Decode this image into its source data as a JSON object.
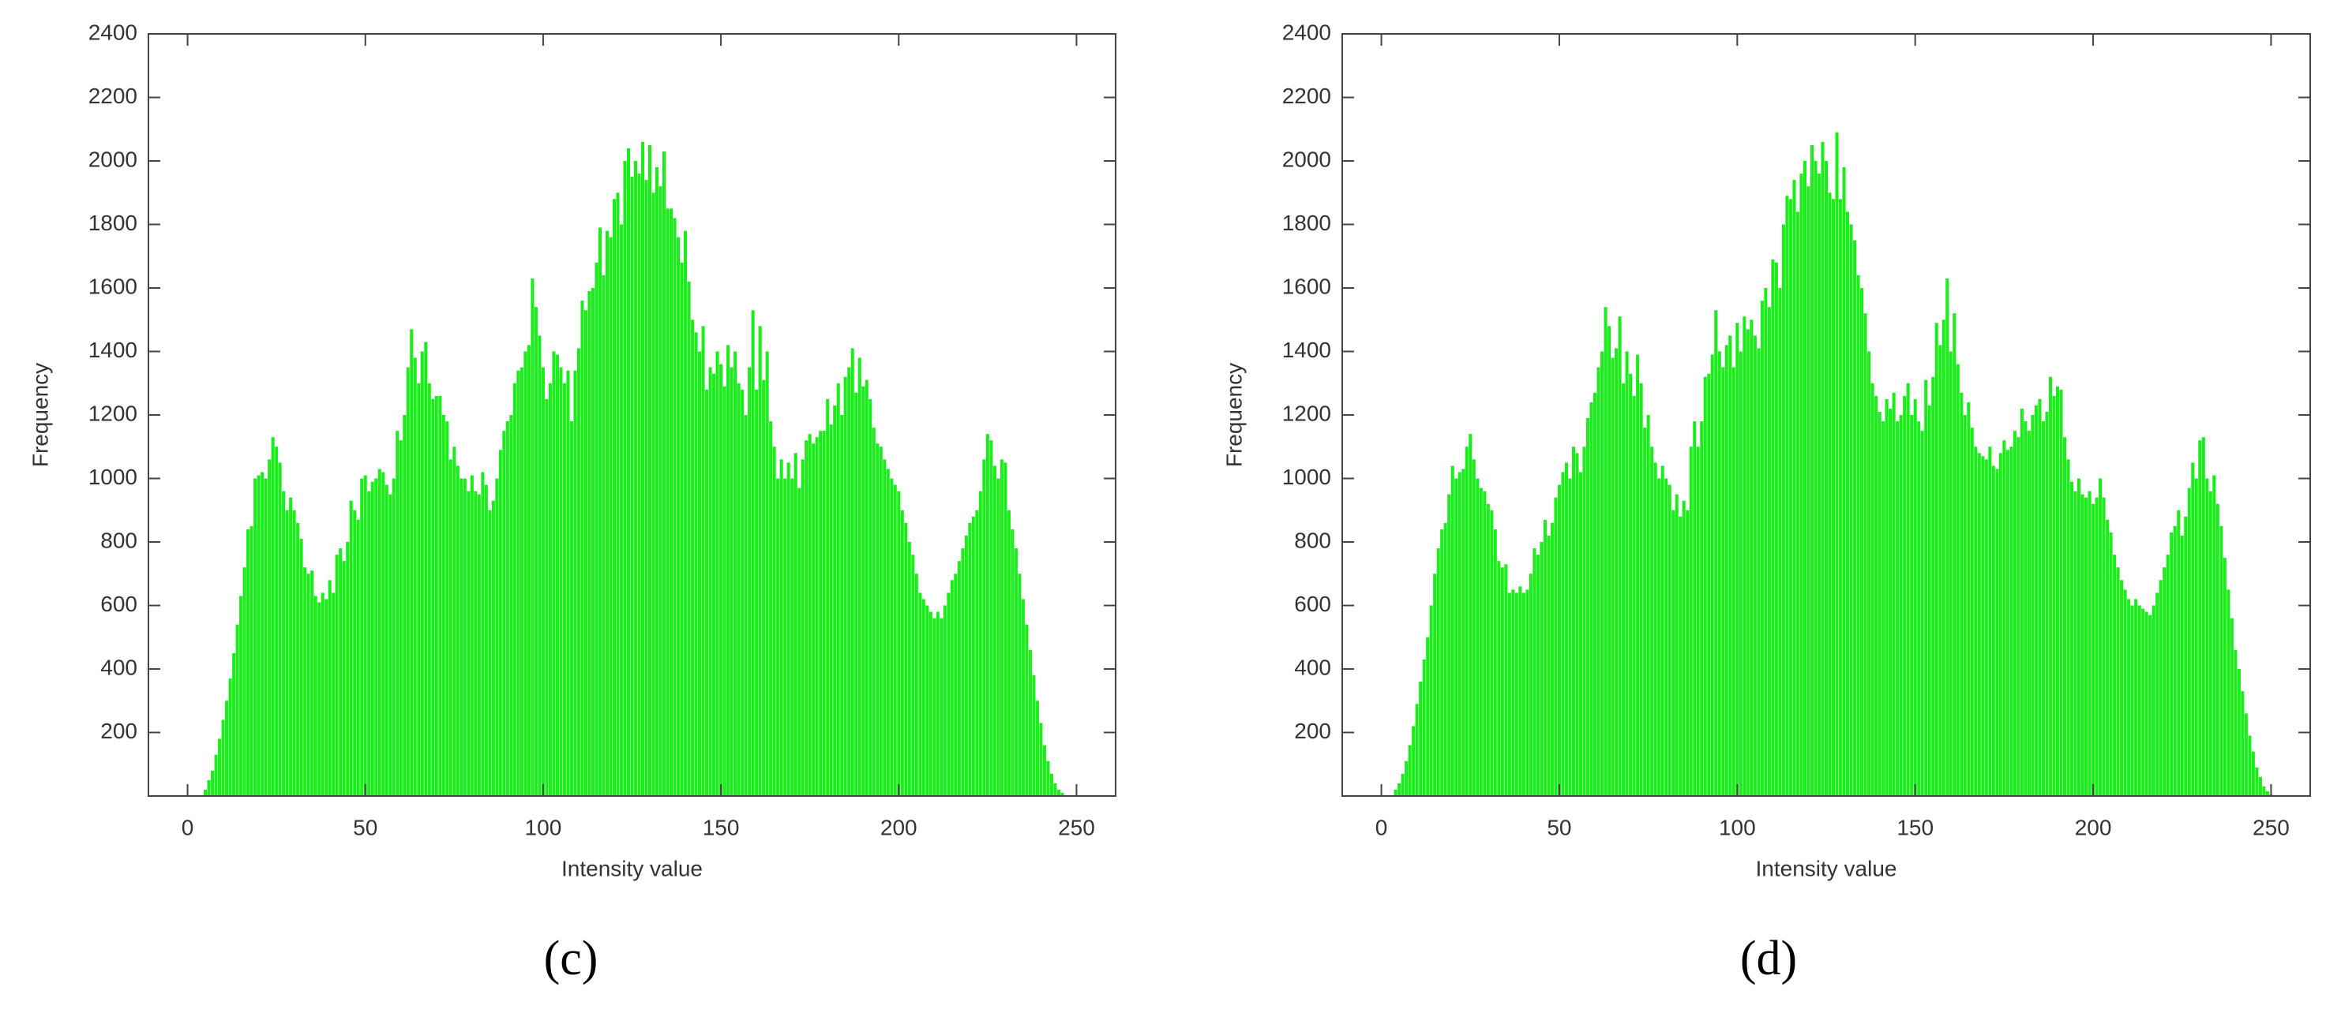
{
  "chart_data": [
    {
      "type": "bar",
      "caption": "(c)",
      "xlabel": "Intensity value",
      "ylabel": "Frequency",
      "color": "#1aee1a",
      "xlim": [
        -11,
        261
      ],
      "xticks": [
        0,
        50,
        100,
        150,
        200,
        250
      ],
      "ylim": [
        0,
        2400
      ],
      "yticks": [
        200,
        400,
        600,
        800,
        1000,
        1200,
        1400,
        1600,
        1800,
        2000,
        2200,
        2400
      ],
      "x": [
        0,
        1,
        2,
        3,
        4,
        5,
        6,
        7,
        8,
        9,
        10,
        11,
        12,
        13,
        14,
        15,
        16,
        17,
        18,
        19,
        20,
        21,
        22,
        23,
        24,
        25,
        26,
        27,
        28,
        29,
        30,
        31,
        32,
        33,
        34,
        35,
        36,
        37,
        38,
        39,
        40,
        41,
        42,
        43,
        44,
        45,
        46,
        47,
        48,
        49,
        50,
        51,
        52,
        53,
        54,
        55,
        56,
        57,
        58,
        59,
        60,
        61,
        62,
        63,
        64,
        65,
        66,
        67,
        68,
        69,
        70,
        71,
        72,
        73,
        74,
        75,
        76,
        77,
        78,
        79,
        80,
        81,
        82,
        83,
        84,
        85,
        86,
        87,
        88,
        89,
        90,
        91,
        92,
        93,
        94,
        95,
        96,
        97,
        98,
        99,
        100,
        101,
        102,
        103,
        104,
        105,
        106,
        107,
        108,
        109,
        110,
        111,
        112,
        113,
        114,
        115,
        116,
        117,
        118,
        119,
        120,
        121,
        122,
        123,
        124,
        125,
        126,
        127,
        128,
        129,
        130,
        131,
        132,
        133,
        134,
        135,
        136,
        137,
        138,
        139,
        140,
        141,
        142,
        143,
        144,
        145,
        146,
        147,
        148,
        149,
        150,
        151,
        152,
        153,
        154,
        155,
        156,
        157,
        158,
        159,
        160,
        161,
        162,
        163,
        164,
        165,
        166,
        167,
        168,
        169,
        170,
        171,
        172,
        173,
        174,
        175,
        176,
        177,
        178,
        179,
        180,
        181,
        182,
        183,
        184,
        185,
        186,
        187,
        188,
        189,
        190,
        191,
        192,
        193,
        194,
        195,
        196,
        197,
        198,
        199,
        200,
        201,
        202,
        203,
        204,
        205,
        206,
        207,
        208,
        209,
        210,
        211,
        212,
        213,
        214,
        215,
        216,
        217,
        218,
        219,
        220,
        221,
        222,
        223,
        224,
        225,
        226,
        227,
        228,
        229,
        230,
        231,
        232,
        233,
        234,
        235,
        236,
        237,
        238,
        239,
        240,
        241,
        242,
        243,
        244,
        245,
        246,
        247,
        248,
        249,
        250,
        251,
        252,
        253,
        254,
        255
      ],
      "values": [
        0,
        0,
        0,
        0,
        0,
        20,
        50,
        80,
        130,
        180,
        240,
        300,
        370,
        450,
        540,
        630,
        720,
        840,
        850,
        1000,
        1010,
        1020,
        1000,
        1060,
        1130,
        1100,
        1050,
        960,
        900,
        940,
        900,
        860,
        810,
        720,
        700,
        710,
        630,
        610,
        640,
        620,
        680,
        640,
        760,
        780,
        740,
        800,
        930,
        900,
        870,
        1000,
        1010,
        960,
        990,
        1000,
        1030,
        1020,
        980,
        950,
        1000,
        1150,
        1120,
        1200,
        1350,
        1470,
        1380,
        1300,
        1400,
        1430,
        1300,
        1250,
        1260,
        1260,
        1200,
        1180,
        1060,
        1100,
        1040,
        1000,
        1000,
        960,
        1010,
        960,
        950,
        1020,
        980,
        900,
        930,
        1000,
        1090,
        1150,
        1180,
        1200,
        1300,
        1340,
        1350,
        1400,
        1420,
        1630,
        1540,
        1450,
        1350,
        1250,
        1300,
        1400,
        1390,
        1350,
        1300,
        1340,
        1180,
        1340,
        1410,
        1560,
        1530,
        1590,
        1600,
        1680,
        1790,
        1640,
        1780,
        1760,
        1880,
        1900,
        1800,
        2000,
        2040,
        1950,
        2000,
        1960,
        2060,
        1940,
        2050,
        1900,
        1980,
        1920,
        2030,
        1850,
        1850,
        1820,
        1760,
        1680,
        1780,
        1620,
        1500,
        1460,
        1400,
        1480,
        1280,
        1350,
        1330,
        1400,
        1360,
        1290,
        1420,
        1350,
        1400,
        1300,
        1280,
        1200,
        1350,
        1530,
        1280,
        1480,
        1310,
        1400,
        1180,
        1100,
        1000,
        1060,
        1000,
        1050,
        1000,
        1080,
        970,
        1060,
        1120,
        1140,
        1110,
        1130,
        1150,
        1150,
        1250,
        1170,
        1230,
        1300,
        1200,
        1320,
        1350,
        1410,
        1270,
        1380,
        1290,
        1310,
        1250,
        1160,
        1110,
        1100,
        1060,
        1030,
        1000,
        980,
        960,
        900,
        860,
        800,
        760,
        700,
        640,
        620,
        600,
        580,
        560,
        580,
        560,
        600,
        640,
        680,
        700,
        740,
        780,
        820,
        860,
        880,
        900,
        960,
        1060,
        1140,
        1120,
        1040,
        1000,
        1060,
        1050,
        900,
        840,
        780,
        700,
        620,
        540,
        460,
        380,
        300,
        230,
        160,
        110,
        70,
        40,
        20,
        10,
        0,
        0,
        0,
        0,
        0,
        0,
        0,
        0,
        0
      ]
    },
    {
      "type": "bar",
      "caption": "(d)",
      "xlabel": "Intensity value",
      "ylabel": "Frequency",
      "color": "#1aee1a",
      "xlim": [
        -11,
        261
      ],
      "xticks": [
        0,
        50,
        100,
        150,
        200,
        250
      ],
      "ylim": [
        0,
        2400
      ],
      "yticks": [
        200,
        400,
        600,
        800,
        1000,
        1200,
        1400,
        1600,
        1800,
        2000,
        2200,
        2400
      ],
      "x": [
        0,
        1,
        2,
        3,
        4,
        5,
        6,
        7,
        8,
        9,
        10,
        11,
        12,
        13,
        14,
        15,
        16,
        17,
        18,
        19,
        20,
        21,
        22,
        23,
        24,
        25,
        26,
        27,
        28,
        29,
        30,
        31,
        32,
        33,
        34,
        35,
        36,
        37,
        38,
        39,
        40,
        41,
        42,
        43,
        44,
        45,
        46,
        47,
        48,
        49,
        50,
        51,
        52,
        53,
        54,
        55,
        56,
        57,
        58,
        59,
        60,
        61,
        62,
        63,
        64,
        65,
        66,
        67,
        68,
        69,
        70,
        71,
        72,
        73,
        74,
        75,
        76,
        77,
        78,
        79,
        80,
        81,
        82,
        83,
        84,
        85,
        86,
        87,
        88,
        89,
        90,
        91,
        92,
        93,
        94,
        95,
        96,
        97,
        98,
        99,
        100,
        101,
        102,
        103,
        104,
        105,
        106,
        107,
        108,
        109,
        110,
        111,
        112,
        113,
        114,
        115,
        116,
        117,
        118,
        119,
        120,
        121,
        122,
        123,
        124,
        125,
        126,
        127,
        128,
        129,
        130,
        131,
        132,
        133,
        134,
        135,
        136,
        137,
        138,
        139,
        140,
        141,
        142,
        143,
        144,
        145,
        146,
        147,
        148,
        149,
        150,
        151,
        152,
        153,
        154,
        155,
        156,
        157,
        158,
        159,
        160,
        161,
        162,
        163,
        164,
        165,
        166,
        167,
        168,
        169,
        170,
        171,
        172,
        173,
        174,
        175,
        176,
        177,
        178,
        179,
        180,
        181,
        182,
        183,
        184,
        185,
        186,
        187,
        188,
        189,
        190,
        191,
        192,
        193,
        194,
        195,
        196,
        197,
        198,
        199,
        200,
        201,
        202,
        203,
        204,
        205,
        206,
        207,
        208,
        209,
        210,
        211,
        212,
        213,
        214,
        215,
        216,
        217,
        218,
        219,
        220,
        221,
        222,
        223,
        224,
        225,
        226,
        227,
        228,
        229,
        230,
        231,
        232,
        233,
        234,
        235,
        236,
        237,
        238,
        239,
        240,
        241,
        242,
        243,
        244,
        245,
        246,
        247,
        248,
        249,
        250,
        251,
        252,
        253,
        254,
        255
      ],
      "values": [
        0,
        0,
        0,
        0,
        20,
        40,
        70,
        110,
        160,
        220,
        290,
        360,
        430,
        500,
        600,
        700,
        780,
        840,
        860,
        950,
        1040,
        1000,
        1020,
        1030,
        1100,
        1140,
        1060,
        1000,
        970,
        960,
        920,
        900,
        840,
        740,
        720,
        730,
        640,
        650,
        640,
        660,
        640,
        650,
        700,
        780,
        760,
        800,
        870,
        820,
        860,
        940,
        980,
        1020,
        1050,
        1000,
        1100,
        1080,
        1020,
        1100,
        1190,
        1240,
        1270,
        1350,
        1400,
        1540,
        1480,
        1380,
        1410,
        1510,
        1300,
        1400,
        1330,
        1260,
        1390,
        1300,
        1160,
        1200,
        1100,
        1050,
        1000,
        1040,
        1000,
        980,
        900,
        950,
        880,
        930,
        900,
        1100,
        1180,
        1100,
        1180,
        1320,
        1330,
        1390,
        1530,
        1400,
        1350,
        1420,
        1450,
        1350,
        1490,
        1400,
        1510,
        1470,
        1500,
        1450,
        1410,
        1560,
        1600,
        1540,
        1690,
        1680,
        1600,
        1800,
        1890,
        1880,
        1940,
        1840,
        1960,
        2000,
        1920,
        2050,
        2000,
        1960,
        2060,
        2000,
        1900,
        1880,
        2090,
        1880,
        1980,
        1840,
        1800,
        1750,
        1640,
        1600,
        1520,
        1400,
        1300,
        1260,
        1210,
        1180,
        1250,
        1220,
        1270,
        1180,
        1200,
        1260,
        1300,
        1200,
        1250,
        1180,
        1150,
        1310,
        1230,
        1320,
        1490,
        1420,
        1500,
        1630,
        1400,
        1520,
        1360,
        1270,
        1200,
        1240,
        1160,
        1100,
        1080,
        1070,
        1060,
        1100,
        1040,
        1030,
        1080,
        1120,
        1090,
        1100,
        1150,
        1130,
        1220,
        1180,
        1150,
        1200,
        1230,
        1250,
        1180,
        1210,
        1320,
        1260,
        1290,
        1280,
        1130,
        1060,
        990,
        960,
        1000,
        950,
        940,
        960,
        920,
        940,
        1000,
        940,
        870,
        830,
        760,
        720,
        680,
        650,
        620,
        600,
        620,
        600,
        590,
        580,
        570,
        600,
        640,
        680,
        720,
        760,
        830,
        850,
        900,
        820,
        880,
        970,
        1050,
        1000,
        1120,
        1130,
        1000,
        960,
        1010,
        920,
        850,
        750,
        650,
        560,
        460,
        400,
        330,
        260,
        190,
        140,
        90,
        60,
        30,
        15,
        5,
        0,
        0,
        0,
        0,
        0
      ]
    }
  ]
}
